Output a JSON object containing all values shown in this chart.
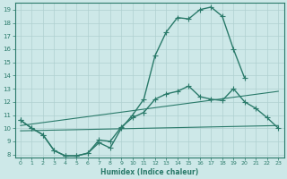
{
  "xlabel": "Humidex (Indice chaleur)",
  "xlim": [
    -0.5,
    23.5
  ],
  "ylim": [
    7.8,
    19.5
  ],
  "yticks": [
    8,
    9,
    10,
    11,
    12,
    13,
    14,
    15,
    16,
    17,
    18,
    19
  ],
  "xticks": [
    0,
    1,
    2,
    3,
    4,
    5,
    6,
    7,
    8,
    9,
    10,
    11,
    12,
    13,
    14,
    15,
    16,
    17,
    18,
    19,
    20,
    21,
    22,
    23
  ],
  "line_color": "#2a7a6a",
  "bg_color": "#cde8e8",
  "grid_color": "#afd0d0",
  "lines": [
    {
      "x": [
        0,
        1,
        2,
        3,
        4,
        5,
        6,
        7,
        8,
        9,
        10,
        11,
        12,
        13,
        14,
        15,
        16,
        17,
        18,
        19,
        20,
        21,
        22,
        23
      ],
      "y": [
        10.6,
        10.0,
        9.5,
        8.3,
        7.9,
        7.9,
        8.1,
        8.9,
        8.5,
        10.0,
        11.0,
        12.2,
        15.5,
        17.3,
        18.4,
        18.3,
        19.0,
        19.2,
        18.5,
        16.0,
        13.8,
        null,
        null,
        null
      ],
      "marker": "P",
      "markersize": 2.5,
      "linewidth": 1.0
    },
    {
      "x": [
        0,
        1,
        2,
        3,
        4,
        5,
        6,
        7,
        8,
        9,
        10,
        11,
        12,
        13,
        14,
        15,
        16,
        17,
        18,
        19,
        20,
        21,
        22,
        23
      ],
      "y": [
        10.6,
        10.0,
        9.5,
        8.3,
        7.9,
        7.9,
        8.1,
        9.1,
        9.0,
        10.1,
        10.8,
        11.2,
        12.2,
        12.6,
        12.8,
        13.2,
        12.4,
        12.2,
        12.1,
        13.0,
        12.0,
        11.5,
        10.8,
        10.0
      ],
      "marker": "P",
      "markersize": 2.5,
      "linewidth": 1.0
    },
    {
      "x": [
        0,
        23
      ],
      "y": [
        10.2,
        12.8
      ],
      "marker": null,
      "markersize": 0,
      "linewidth": 0.8
    },
    {
      "x": [
        0,
        23
      ],
      "y": [
        9.8,
        10.2
      ],
      "marker": null,
      "markersize": 0,
      "linewidth": 0.8
    }
  ]
}
